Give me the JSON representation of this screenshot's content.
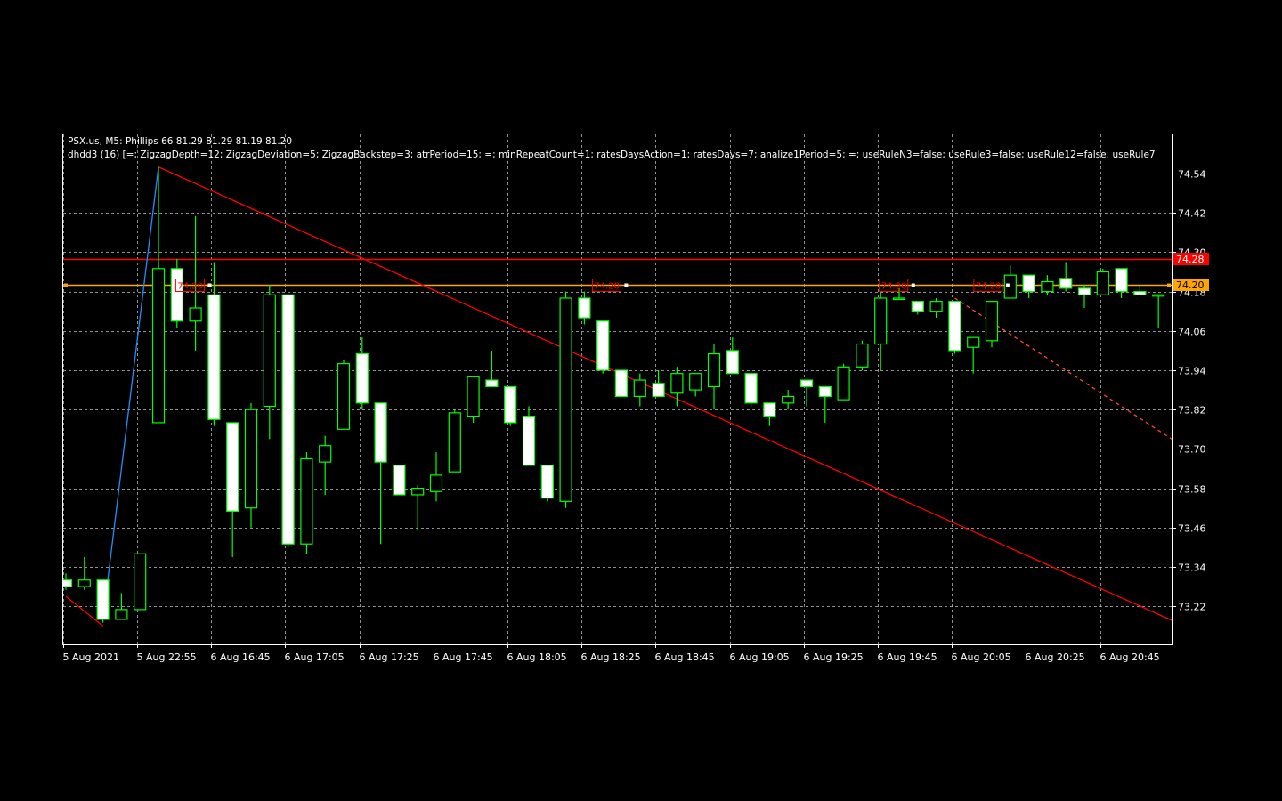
{
  "header": {
    "symbol": "PSX.us, M5:",
    "name": "Phillips 66",
    "ohlc": "81.29 81.29 81.19 81.20",
    "indicator": "dhdd3 (16) [=; ZigzagDepth=12; ZigzagDeviation=5; ZigzagBackstep=3; atrPeriod=15; =; minRepeatCount=1; ratesDaysAction=1; ratesDays=7; analize1Period=5; =; useRuleN3=false; useRule3=false; useRule12=false; useRule7"
  },
  "colors": {
    "background": "#000000",
    "frame": "#ffffff",
    "grid": "#c0c0c0",
    "bull_body": "#000000",
    "bear_body": "#ffffff",
    "wick": "#00ff00",
    "zigzag": "#1e90ff",
    "trendline": "#ff0000",
    "level_red": "#ff0000",
    "level_orange": "#ffa500"
  },
  "chart_data": {
    "type": "candlestick",
    "y_ticks": [
      "74.54",
      "74.42",
      "74.30",
      "74.18",
      "74.06",
      "73.94",
      "73.82",
      "73.70",
      "73.58",
      "73.46",
      "73.34",
      "73.22"
    ],
    "ylim": [
      73.13,
      74.59
    ],
    "x_ticks": [
      "5 Aug 2021",
      "5 Aug 22:55",
      "6 Aug 16:45",
      "6 Aug 17:05",
      "6 Aug 17:25",
      "6 Aug 17:45",
      "6 Aug 18:05",
      "6 Aug 18:25",
      "6 Aug 18:45",
      "6 Aug 19:05",
      "6 Aug 19:25",
      "6 Aug 19:45",
      "6 Aug 20:05",
      "6 Aug 20:25",
      "6 Aug 20:45"
    ],
    "candles": [
      {
        "o": 73.3,
        "h": 73.32,
        "l": 73.27,
        "c": 73.28
      },
      {
        "o": 73.28,
        "h": 73.37,
        "l": 73.27,
        "c": 73.3
      },
      {
        "o": 73.3,
        "h": 73.3,
        "l": 73.17,
        "c": 73.18
      },
      {
        "o": 73.18,
        "h": 73.26,
        "l": 73.18,
        "c": 73.21
      },
      {
        "o": 73.21,
        "h": 73.38,
        "l": 73.21,
        "c": 73.38
      },
      {
        "o": 73.78,
        "h": 74.56,
        "l": 73.78,
        "c": 74.25
      },
      {
        "o": 74.25,
        "h": 74.28,
        "l": 74.07,
        "c": 74.09
      },
      {
        "o": 74.09,
        "h": 74.41,
        "l": 74.0,
        "c": 74.13
      },
      {
        "o": 74.17,
        "h": 74.27,
        "l": 73.77,
        "c": 73.79
      },
      {
        "o": 73.78,
        "h": 73.78,
        "l": 73.37,
        "c": 73.51
      },
      {
        "o": 73.52,
        "h": 73.84,
        "l": 73.46,
        "c": 73.82
      },
      {
        "o": 73.83,
        "h": 74.2,
        "l": 73.73,
        "c": 74.17
      },
      {
        "o": 74.17,
        "h": 74.17,
        "l": 73.4,
        "c": 73.41
      },
      {
        "o": 73.41,
        "h": 73.69,
        "l": 73.38,
        "c": 73.67
      },
      {
        "o": 73.66,
        "h": 73.74,
        "l": 73.56,
        "c": 73.71
      },
      {
        "o": 73.76,
        "h": 73.97,
        "l": 73.76,
        "c": 73.96
      },
      {
        "o": 73.99,
        "h": 74.04,
        "l": 73.82,
        "c": 73.84
      },
      {
        "o": 73.84,
        "h": 73.84,
        "l": 73.41,
        "c": 73.66
      },
      {
        "o": 73.65,
        "h": 73.65,
        "l": 73.56,
        "c": 73.56
      },
      {
        "o": 73.56,
        "h": 73.59,
        "l": 73.45,
        "c": 73.58
      },
      {
        "o": 73.57,
        "h": 73.69,
        "l": 73.54,
        "c": 73.62
      },
      {
        "o": 73.63,
        "h": 73.82,
        "l": 73.63,
        "c": 73.81
      },
      {
        "o": 73.8,
        "h": 73.92,
        "l": 73.78,
        "c": 73.92
      },
      {
        "o": 73.91,
        "h": 74.0,
        "l": 73.89,
        "c": 73.89
      },
      {
        "o": 73.89,
        "h": 73.89,
        "l": 73.77,
        "c": 73.78
      },
      {
        "o": 73.8,
        "h": 73.83,
        "l": 73.65,
        "c": 73.65
      },
      {
        "o": 73.65,
        "h": 73.65,
        "l": 73.54,
        "c": 73.55
      },
      {
        "o": 73.54,
        "h": 74.18,
        "l": 73.52,
        "c": 74.16
      },
      {
        "o": 74.16,
        "h": 74.18,
        "l": 74.08,
        "c": 74.1
      },
      {
        "o": 74.09,
        "h": 74.09,
        "l": 73.93,
        "c": 73.94
      },
      {
        "o": 73.94,
        "h": 73.94,
        "l": 73.86,
        "c": 73.86
      },
      {
        "o": 73.86,
        "h": 73.93,
        "l": 73.83,
        "c": 73.91
      },
      {
        "o": 73.9,
        "h": 73.94,
        "l": 73.86,
        "c": 73.86
      },
      {
        "o": 73.87,
        "h": 73.95,
        "l": 73.83,
        "c": 73.93
      },
      {
        "o": 73.88,
        "h": 73.93,
        "l": 73.86,
        "c": 73.93
      },
      {
        "o": 73.89,
        "h": 74.02,
        "l": 73.82,
        "c": 73.99
      },
      {
        "o": 74.0,
        "h": 74.04,
        "l": 73.93,
        "c": 73.93
      },
      {
        "o": 73.93,
        "h": 73.93,
        "l": 73.83,
        "c": 73.84
      },
      {
        "o": 73.84,
        "h": 73.84,
        "l": 73.77,
        "c": 73.8
      },
      {
        "o": 73.84,
        "h": 73.88,
        "l": 73.82,
        "c": 73.86
      },
      {
        "o": 73.91,
        "h": 73.91,
        "l": 73.83,
        "c": 73.89
      },
      {
        "o": 73.89,
        "h": 73.89,
        "l": 73.78,
        "c": 73.86
      },
      {
        "o": 73.85,
        "h": 73.96,
        "l": 73.85,
        "c": 73.95
      },
      {
        "o": 73.95,
        "h": 74.03,
        "l": 73.94,
        "c": 74.02
      },
      {
        "o": 74.02,
        "h": 74.18,
        "l": 73.94,
        "c": 74.16
      },
      {
        "o": 74.16,
        "h": 74.19,
        "l": 74.16,
        "c": 74.16
      },
      {
        "o": 74.15,
        "h": 74.15,
        "l": 74.11,
        "c": 74.12
      },
      {
        "o": 74.12,
        "h": 74.16,
        "l": 74.1,
        "c": 74.15
      },
      {
        "o": 74.15,
        "h": 74.15,
        "l": 73.99,
        "c": 74.0
      },
      {
        "o": 74.01,
        "h": 74.04,
        "l": 73.93,
        "c": 74.04
      },
      {
        "o": 74.03,
        "h": 74.15,
        "l": 74.01,
        "c": 74.15
      },
      {
        "o": 74.16,
        "h": 74.26,
        "l": 74.16,
        "c": 74.23
      },
      {
        "o": 74.23,
        "h": 74.23,
        "l": 74.16,
        "c": 74.18
      },
      {
        "o": 74.18,
        "h": 74.23,
        "l": 74.17,
        "c": 74.21
      },
      {
        "o": 74.22,
        "h": 74.27,
        "l": 74.18,
        "c": 74.19
      },
      {
        "o": 74.19,
        "h": 74.2,
        "l": 74.13,
        "c": 74.17
      },
      {
        "o": 74.17,
        "h": 74.25,
        "l": 74.17,
        "c": 74.24
      },
      {
        "o": 74.25,
        "h": 74.25,
        "l": 74.16,
        "c": 74.18
      },
      {
        "o": 74.18,
        "h": 74.2,
        "l": 74.17,
        "c": 74.17
      },
      {
        "o": 74.17,
        "h": 74.17,
        "l": 74.07,
        "c": 74.17
      }
    ],
    "levels": [
      {
        "price": 74.28,
        "label": "74.28",
        "color": "#ff0000"
      },
      {
        "price": 74.2,
        "label": "74.20",
        "color": "#ffa500"
      }
    ],
    "level_markers": [
      "74.20",
      "74.20",
      "74.20",
      "74.20"
    ],
    "zigzag": [
      [
        2,
        73.18
      ],
      [
        5,
        74.56
      ]
    ],
    "trendline": [
      [
        5,
        74.56
      ],
      [
        60,
        73.17
      ]
    ],
    "trendline_left": [
      [
        0,
        73.25
      ],
      [
        2,
        73.16
      ]
    ],
    "trend_projection": [
      [
        48,
        74.16
      ],
      [
        60,
        73.72
      ]
    ],
    "grid": true
  }
}
